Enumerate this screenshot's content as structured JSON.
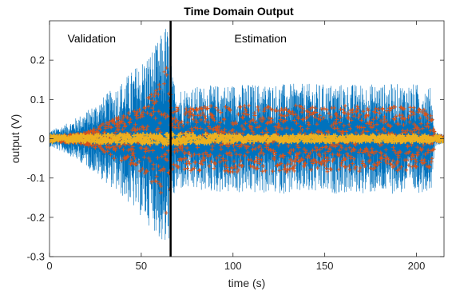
{
  "chart_data": {
    "type": "line",
    "title": "Time Domain Output",
    "xlabel": "time (s)",
    "ylabel": "output (V)",
    "xlim": [
      0,
      215
    ],
    "ylim": [
      -0.3,
      0.3
    ],
    "xticks": [
      {
        "value": 0,
        "label": "0"
      },
      {
        "value": 50,
        "label": "50"
      },
      {
        "value": 100,
        "label": "100"
      },
      {
        "value": 150,
        "label": "150"
      },
      {
        "value": 200,
        "label": "200"
      }
    ],
    "yticks": [
      {
        "value": -0.3,
        "label": "-0.3"
      },
      {
        "value": -0.2,
        "label": "-0.2"
      },
      {
        "value": -0.1,
        "label": "-0.1"
      },
      {
        "value": 0,
        "label": "0"
      },
      {
        "value": 0.1,
        "label": "0.1"
      },
      {
        "value": 0.2,
        "label": "0.2"
      }
    ],
    "grid": false,
    "split_line": {
      "x": 66,
      "color": "#000000"
    },
    "annotations": [
      {
        "text": "Validation",
        "x": 23,
        "y": 0.245
      },
      {
        "text": "Estimation",
        "x": 115,
        "y": 0.245
      }
    ],
    "series": [
      {
        "color": "#0072BD",
        "style": "line",
        "envelope": [
          [
            0,
            0.02
          ],
          [
            10,
            0.04
          ],
          [
            20,
            0.07
          ],
          [
            30,
            0.11
          ],
          [
            40,
            0.15
          ],
          [
            50,
            0.2
          ],
          [
            58,
            0.24
          ],
          [
            64,
            0.3
          ],
          [
            66,
            0.22
          ],
          [
            67,
            0.16
          ],
          [
            70,
            0.13
          ],
          [
            100,
            0.14
          ],
          [
            150,
            0.14
          ],
          [
            200,
            0.14
          ],
          [
            208,
            0.13
          ],
          [
            210,
            0.02
          ],
          [
            215,
            0.01
          ]
        ]
      },
      {
        "color": "#D95319",
        "style": "markers",
        "envelope": [
          [
            0,
            0.005
          ],
          [
            20,
            0.015
          ],
          [
            30,
            0.04
          ],
          [
            40,
            0.06
          ],
          [
            50,
            0.09
          ],
          [
            58,
            0.13
          ],
          [
            64,
            0.2
          ],
          [
            66,
            0.12
          ],
          [
            67,
            0.08
          ],
          [
            100,
            0.085
          ],
          [
            150,
            0.085
          ],
          [
            200,
            0.08
          ],
          [
            208,
            0.08
          ],
          [
            210,
            0.01
          ],
          [
            215,
            0.005
          ]
        ]
      },
      {
        "color": "#EDB120",
        "style": "markers",
        "envelope": [
          [
            0,
            0.008
          ],
          [
            50,
            0.012
          ],
          [
            66,
            0.015
          ],
          [
            100,
            0.008
          ],
          [
            200,
            0.008
          ],
          [
            215,
            0.008
          ]
        ]
      }
    ]
  }
}
